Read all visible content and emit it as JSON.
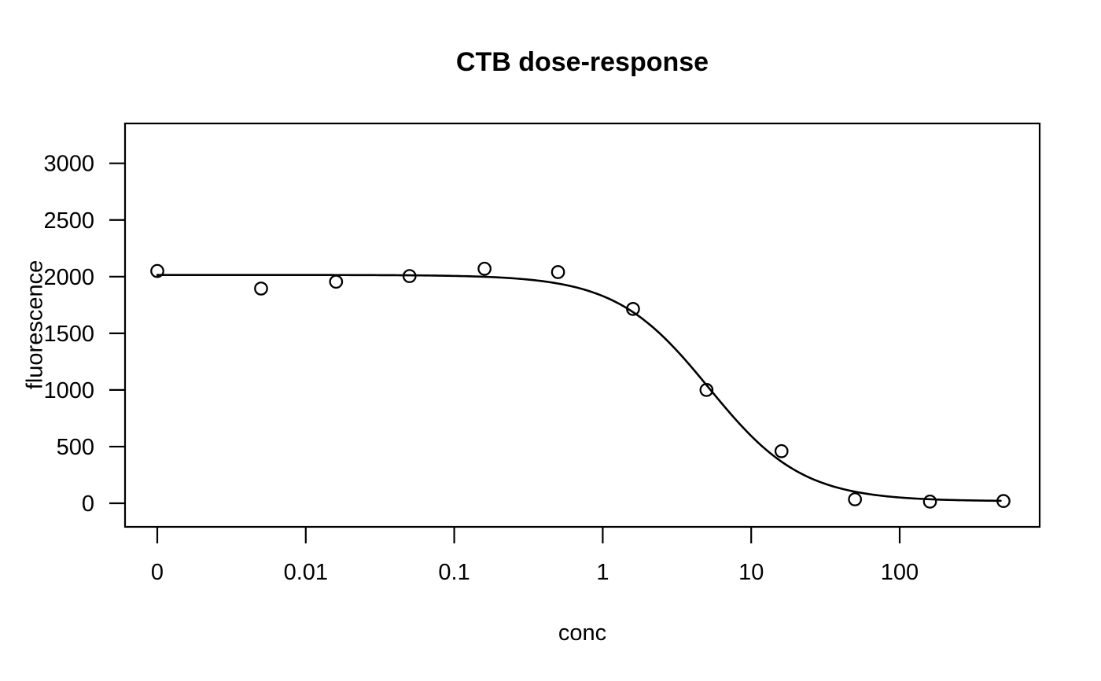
{
  "chart_data": {
    "type": "scatter",
    "title": "CTB dose-response",
    "xlabel": "conc",
    "ylabel": "fluorescence",
    "x_scale": "log10; zero concentration plotted one decade below 0.01",
    "x_tick_labels": [
      "0",
      "0.01",
      "0.1",
      "1",
      "10",
      "100"
    ],
    "x_tick_decades": [
      -3,
      -2,
      -1,
      0,
      1,
      2
    ],
    "y_ticks": [
      0,
      500,
      1000,
      1500,
      2000,
      2500,
      3000
    ],
    "xlim_decades": [
      -3.22,
      2.94
    ],
    "ylim": [
      -210,
      3350
    ],
    "grid": "off",
    "legend": "none",
    "marker": "open-circle",
    "points": [
      {
        "conc": 0,
        "fluorescence": 2050
      },
      {
        "conc": 0.005,
        "fluorescence": 1895
      },
      {
        "conc": 0.016,
        "fluorescence": 1955
      },
      {
        "conc": 0.05,
        "fluorescence": 2005
      },
      {
        "conc": 0.16,
        "fluorescence": 2070
      },
      {
        "conc": 0.5,
        "fluorescence": 2040
      },
      {
        "conc": 1.6,
        "fluorescence": 1715
      },
      {
        "conc": 5,
        "fluorescence": 1000
      },
      {
        "conc": 16,
        "fluorescence": 460
      },
      {
        "conc": 50,
        "fluorescence": 35
      },
      {
        "conc": 160,
        "fluorescence": 15
      },
      {
        "conc": 500,
        "fluorescence": 20
      }
    ],
    "fit_curve": {
      "model": "4-parameter logistic",
      "top": 2015,
      "bottom": 18,
      "ec50": 5.2,
      "hill": 1.38
    },
    "colors": {
      "foreground": "#000000",
      "background": "#ffffff"
    }
  }
}
